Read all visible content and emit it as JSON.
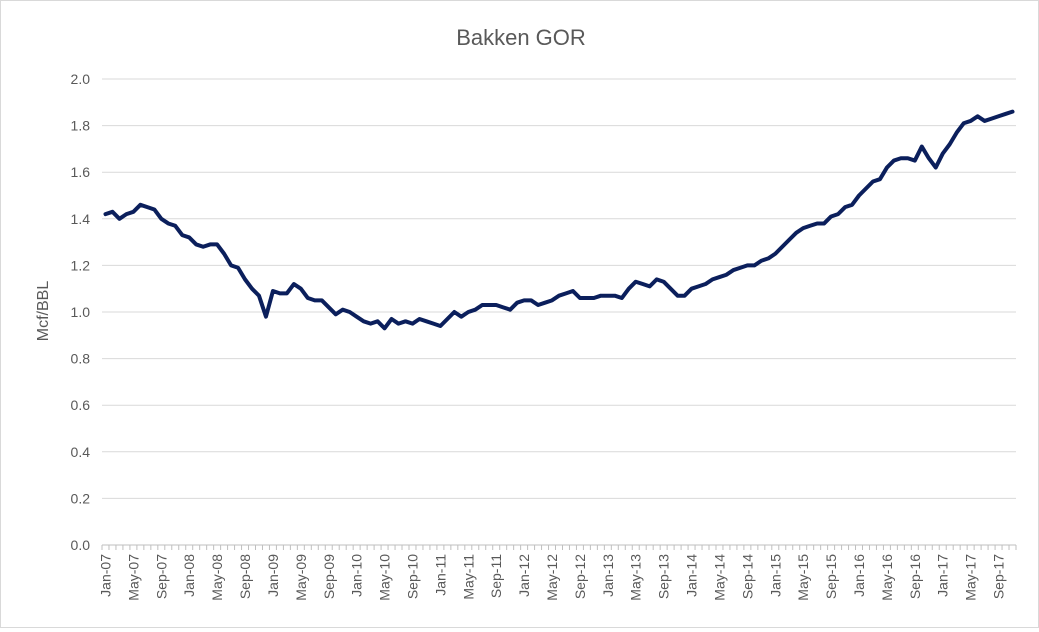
{
  "chart_data": {
    "type": "line",
    "title": "Bakken GOR",
    "xlabel": "",
    "ylabel": "Mcf/BBL",
    "ylim": [
      0,
      2.0
    ],
    "yticks": [
      "0.0",
      "0.2",
      "0.4",
      "0.6",
      "0.8",
      "1.0",
      "1.2",
      "1.4",
      "1.6",
      "1.8",
      "2.0"
    ],
    "grid": true,
    "legend": "none",
    "line_color": "#0b1f5c",
    "x_start": "2007-01",
    "xtick_labels": [
      "Jan-07",
      "May-07",
      "Sep-07",
      "Jan-08",
      "May-08",
      "Sep-08",
      "Jan-09",
      "May-09",
      "Sep-09",
      "Jan-10",
      "May-10",
      "Sep-10",
      "Jan-11",
      "May-11",
      "Sep-11",
      "Jan-12",
      "May-12",
      "Sep-12",
      "Jan-13",
      "May-13",
      "Sep-13",
      "Jan-14",
      "May-14",
      "Sep-14",
      "Jan-15",
      "May-15",
      "Sep-15",
      "Jan-16",
      "May-16",
      "Sep-16",
      "Jan-17",
      "May-17",
      "Sep-17"
    ],
    "series": [
      {
        "values": [
          1.42,
          1.43,
          1.4,
          1.42,
          1.43,
          1.46,
          1.45,
          1.44,
          1.4,
          1.38,
          1.37,
          1.33,
          1.32,
          1.29,
          1.28,
          1.29,
          1.29,
          1.25,
          1.2,
          1.19,
          1.14,
          1.1,
          1.07,
          0.98,
          1.09,
          1.08,
          1.08,
          1.12,
          1.1,
          1.06,
          1.05,
          1.05,
          1.02,
          0.99,
          1.01,
          1.0,
          0.98,
          0.96,
          0.95,
          0.96,
          0.93,
          0.97,
          0.95,
          0.96,
          0.95,
          0.97,
          0.96,
          0.95,
          0.94,
          0.97,
          1.0,
          0.98,
          1.0,
          1.01,
          1.03,
          1.03,
          1.03,
          1.02,
          1.01,
          1.04,
          1.05,
          1.05,
          1.03,
          1.04,
          1.05,
          1.07,
          1.08,
          1.09,
          1.06,
          1.06,
          1.06,
          1.07,
          1.07,
          1.07,
          1.06,
          1.1,
          1.13,
          1.12,
          1.11,
          1.14,
          1.13,
          1.1,
          1.07,
          1.07,
          1.1,
          1.11,
          1.12,
          1.14,
          1.15,
          1.16,
          1.18,
          1.19,
          1.2,
          1.2,
          1.22,
          1.23,
          1.25,
          1.28,
          1.31,
          1.34,
          1.36,
          1.37,
          1.38,
          1.38,
          1.41,
          1.42,
          1.45,
          1.46,
          1.5,
          1.53,
          1.56,
          1.57,
          1.62,
          1.65,
          1.66,
          1.66,
          1.65,
          1.71,
          1.66,
          1.62,
          1.68,
          1.72,
          1.77,
          1.81,
          1.82,
          1.84,
          1.82,
          1.83,
          1.84,
          1.85,
          1.86
        ]
      }
    ]
  }
}
